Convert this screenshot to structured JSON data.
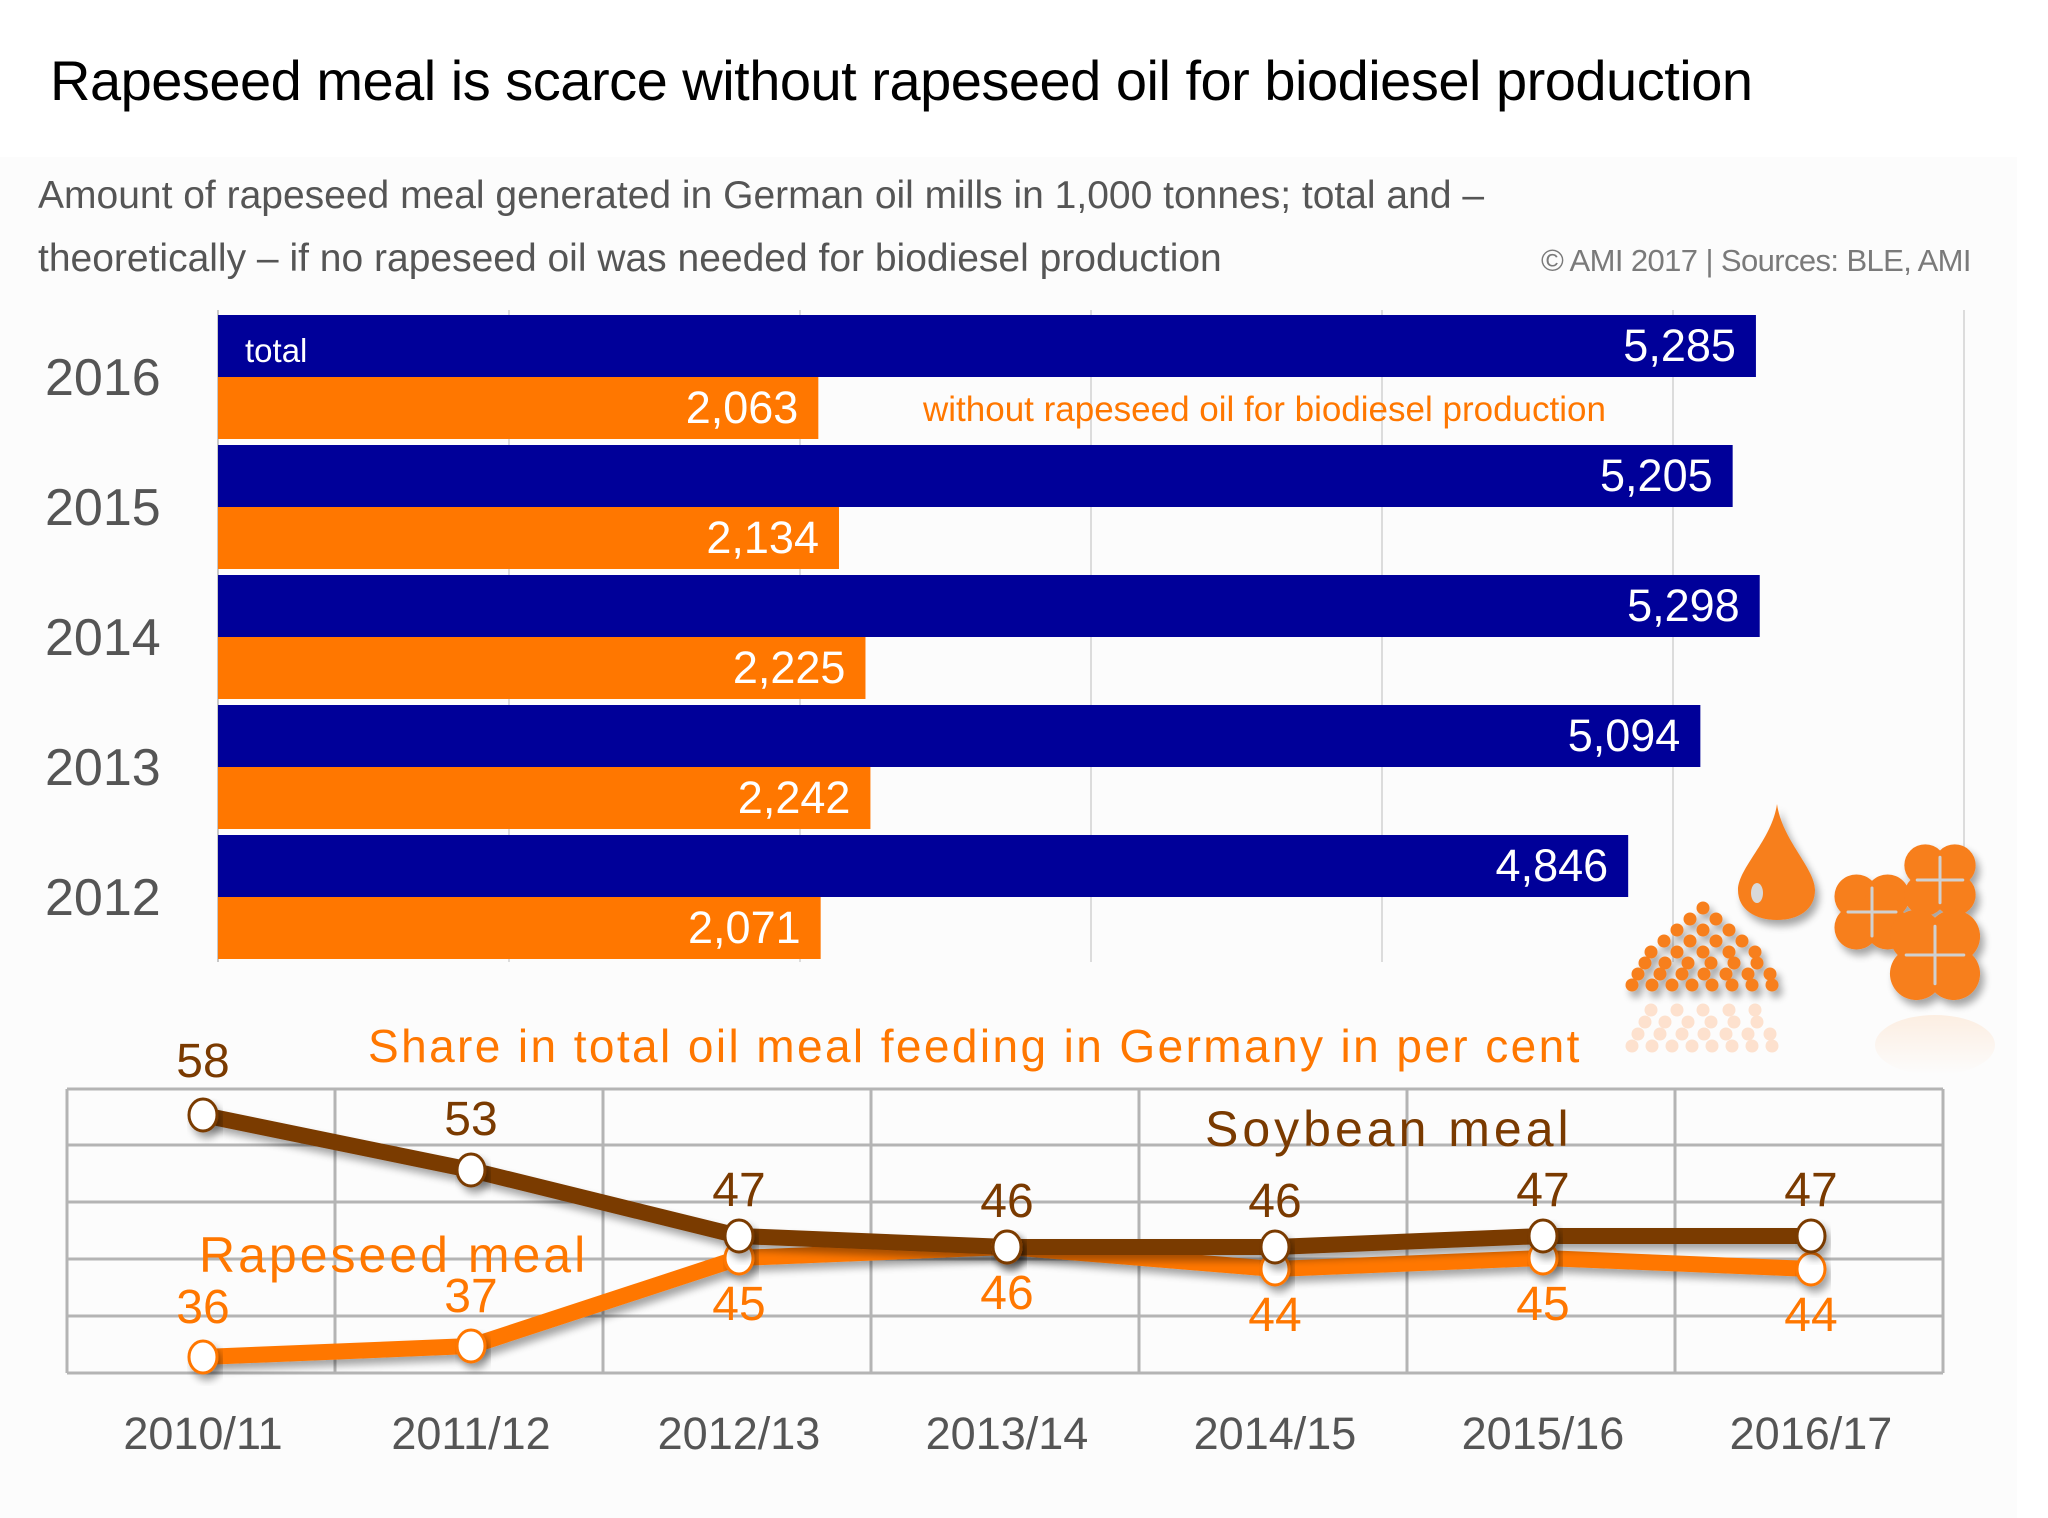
{
  "title": "Rapeseed meal is scarce without rapeseed oil for biodiesel production",
  "subtitle_line1": "Amount of rapeseed meal generated in German oil mills in 1,000 tonnes; total and –",
  "subtitle_line2": "theoretically – if no rapeseed oil was needed for biodiesel production",
  "copyright": "© AMI 2017 | Sources: BLE, AMI",
  "colors": {
    "navy": "#000099",
    "orange": "#ff7700",
    "brown": "#7a3a00",
    "grid": "#b4b4b4",
    "axis_text": "#555555"
  },
  "icons": [
    "rapeseed-pile-icon",
    "oil-droplet-icon",
    "rapeseed-flowers-icon"
  ],
  "chart_data": [
    {
      "type": "bar",
      "orientation": "horizontal",
      "title": "Amount of rapeseed meal generated in German oil mills in 1,000 tonnes",
      "categories": [
        "2016",
        "2015",
        "2014",
        "2013",
        "2012"
      ],
      "series": [
        {
          "name": "total",
          "color": "#000099",
          "values": [
            5285,
            5205,
            5298,
            5094,
            4846
          ],
          "labels": [
            "5,285",
            "5,205",
            "5,298",
            "5,094",
            "4,846"
          ]
        },
        {
          "name": "without rapeseed oil for biodiesel production",
          "color": "#ff7700",
          "values": [
            2063,
            2134,
            2225,
            2242,
            2071
          ],
          "labels": [
            "2,063",
            "2,134",
            "2,225",
            "2,242",
            "2,071"
          ]
        }
      ],
      "xlim": [
        0,
        6000
      ],
      "gridlines": [
        0,
        1000,
        2000,
        3000,
        4000,
        5000,
        6000
      ],
      "grid": true
    },
    {
      "type": "line",
      "title": "Share in total oil meal feeding in Germany in per cent",
      "categories": [
        "2010/11",
        "2011/12",
        "2012/13",
        "2013/14",
        "2014/15",
        "2015/16",
        "2016/17"
      ],
      "series": [
        {
          "name": "Soybean meal",
          "color": "#7a3a00",
          "values": [
            58,
            53,
            47,
            46,
            46,
            47,
            47
          ]
        },
        {
          "name": "Rapeseed meal",
          "color": "#ff7700",
          "values": [
            36,
            37,
            45,
            46,
            44,
            45,
            44
          ]
        }
      ],
      "ylim": [
        34,
        60
      ],
      "grid": true
    }
  ]
}
